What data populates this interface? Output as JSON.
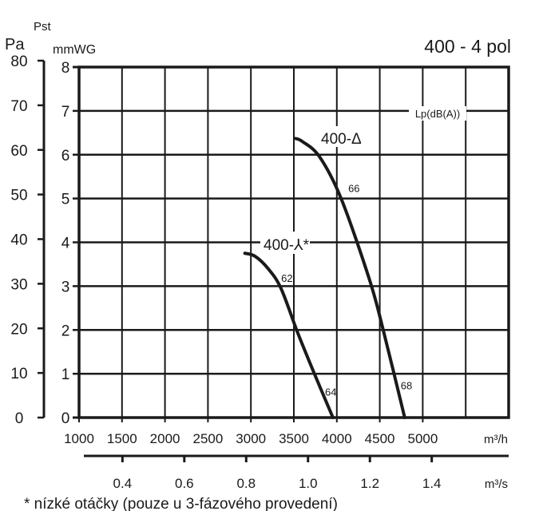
{
  "chart_data": {
    "type": "line",
    "title": "400 - 4 pol",
    "ylabel": "Pst",
    "y_units_left": "Pa",
    "y_units_right": "mmWG",
    "x_units": "m³/h",
    "x2_units": "m³/s",
    "xlim": [
      1000,
      6000
    ],
    "ylim": [
      0,
      8
    ],
    "y_pa_lim": [
      0,
      80
    ],
    "grid": true,
    "x_ticks": [
      "1000",
      "1500",
      "2000",
      "2500",
      "3000",
      "3500",
      "4000",
      "4500",
      "5000"
    ],
    "x_tick_values": [
      1000,
      1500,
      2000,
      2500,
      3000,
      3500,
      4000,
      4500,
      5000
    ],
    "x2_ticks": [
      "0.4",
      "0.6",
      "0.8",
      "1.0",
      "1.2",
      "1.4"
    ],
    "x2_tick_values": [
      0.4,
      0.6,
      0.8,
      1.0,
      1.2,
      1.4
    ],
    "y_ticks": [
      "0",
      "1",
      "2",
      "3",
      "4",
      "5",
      "6",
      "7",
      "8"
    ],
    "y_pa_ticks": [
      "0",
      "10",
      "20",
      "30",
      "40",
      "50",
      "60",
      "70",
      "80"
    ],
    "noise_label": "Lp(dB(A))",
    "series": [
      {
        "name": "400-Δ",
        "x": [
          3520,
          3600,
          3800,
          4050,
          4380,
          4540,
          4790
        ],
        "y": [
          6.37,
          6.3,
          5.95,
          5.0,
          3.15,
          2.0,
          0
        ]
      },
      {
        "name": "400-⅄*",
        "x": [
          2930,
          3050,
          3200,
          3350,
          3546,
          3750,
          3955
        ],
        "y": [
          3.75,
          3.68,
          3.4,
          2.95,
          1.93,
          0.95,
          0
        ]
      }
    ],
    "annotations": [
      {
        "text": "66",
        "x": 4200,
        "y": 5.15
      },
      {
        "text": "62",
        "x": 3420,
        "y": 3.1
      },
      {
        "text": "64",
        "x": 3930,
        "y": 0.5
      },
      {
        "text": "68",
        "x": 4810,
        "y": 0.65
      }
    ],
    "footnote": "* nízké otáčky (pouze u 3-fázového provedení)"
  }
}
